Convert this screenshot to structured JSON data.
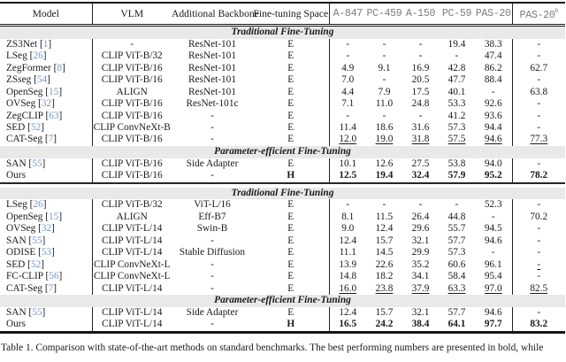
{
  "colors": {
    "citation_link": "#7498c9",
    "section_band_bg": "#e9e9e9",
    "benchmark_header_text": "#7c7c7c"
  },
  "table": {
    "header": {
      "model": "Model",
      "vlm": "VLM",
      "backbone": "Additional Backbone",
      "space": "Fine-tuning Space",
      "benchmarks": [
        "A-847",
        "PC-459",
        "A-150",
        "PC-59",
        "PAS-20"
      ],
      "benchmark_b": "PAS-20",
      "benchmark_b_sup": "b"
    },
    "sections": [
      {
        "label": "Traditional Fine-Tuning",
        "rows": [
          {
            "model": "ZS3Net",
            "ref": "1",
            "vlm": "-",
            "backbone": "ResNet-101",
            "space": "E",
            "values": [
              "-",
              "-",
              "-",
              "19.4",
              "38.3",
              "-"
            ]
          },
          {
            "model": "LSeg",
            "ref": "26",
            "vlm": "CLIP ViT-B/32",
            "backbone": "ResNet-101",
            "space": "E",
            "values": [
              "-",
              "-",
              "-",
              "-",
              "47.4",
              "-"
            ]
          },
          {
            "model": "ZegFormer",
            "ref": "8",
            "vlm": "CLIP ViT-B/16",
            "backbone": "ResNet-101",
            "space": "E",
            "values": [
              "4.9",
              "9.1",
              "16.9",
              "42.8",
              "86.2",
              "62.7"
            ]
          },
          {
            "model": "ZSseg",
            "ref": "54",
            "vlm": "CLIP ViT-B/16",
            "backbone": "ResNet-101",
            "space": "E",
            "values": [
              "7.0",
              "-",
              "20.5",
              "47.7",
              "88.4",
              "-"
            ]
          },
          {
            "model": "OpenSeg",
            "ref": "15",
            "vlm": "ALIGN",
            "backbone": "ResNet-101",
            "space": "E",
            "values": [
              "4.4",
              "7.9",
              "17.5",
              "40.1",
              "-",
              "63.8"
            ]
          },
          {
            "model": "OVSeg",
            "ref": "32",
            "vlm": "CLIP ViT-B/16",
            "backbone": "ResNet-101c",
            "space": "E",
            "values": [
              "7.1",
              "11.0",
              "24.8",
              "53.3",
              "92.6",
              "-"
            ]
          },
          {
            "model": "ZegCLIP",
            "ref": "63",
            "vlm": "CLIP ViT-B/16",
            "backbone": "-",
            "space": "E",
            "values": [
              "-",
              "-",
              "-",
              "41.2",
              "93.6",
              "-"
            ]
          },
          {
            "model": "SED",
            "ref": "52",
            "vlm": "CLIP ConvNeXt-B",
            "backbone": "-",
            "space": "E",
            "values": [
              "11.4",
              "18.6",
              "31.6",
              "57.3",
              "94.4",
              "-"
            ]
          },
          {
            "model": "CAT-Seg",
            "ref": "7",
            "vlm": "CLIP ViT-B/16",
            "backbone": "-",
            "space": "E",
            "values": [
              "12.0",
              "19.0",
              "31.8",
              "57.5",
              "94.6",
              "77.3"
            ],
            "underline": [
              0,
              1,
              2,
              3,
              4,
              5
            ]
          }
        ]
      },
      {
        "label": "Parameter-efficient Fine-Tuning",
        "rows": [
          {
            "model": "SAN",
            "ref": "55",
            "vlm": "CLIP ViT-B/16",
            "backbone": "Side Adapter",
            "space": "E",
            "values": [
              "10.1",
              "12.6",
              "27.5",
              "53.8",
              "94.0",
              "-"
            ]
          },
          {
            "model": "Ours",
            "ref": null,
            "vlm": "CLIP ViT-B/16",
            "backbone": "-",
            "space": "H",
            "bold": true,
            "values": [
              "12.5",
              "19.4",
              "32.4",
              "57.9",
              "95.2",
              "78.2"
            ]
          }
        ]
      },
      {
        "label": "Traditional Fine-Tuning",
        "separator_before": true,
        "rows": [
          {
            "model": "LSeg",
            "ref": "26",
            "vlm": "CLIP ViT-B/32",
            "backbone": "ViT-L/16",
            "space": "E",
            "values": [
              "-",
              "-",
              "-",
              "-",
              "52.3",
              "-"
            ]
          },
          {
            "model": "OpenSeg",
            "ref": "15",
            "vlm": "ALIGN",
            "backbone": "Eff-B7",
            "space": "E",
            "values": [
              "8.1",
              "11.5",
              "26.4",
              "44.8",
              "-",
              "70.2"
            ]
          },
          {
            "model": "OVSeg",
            "ref": "32",
            "vlm": "CLIP ViT-L/14",
            "backbone": "Swin-B",
            "space": "E",
            "values": [
              "9.0",
              "12.4",
              "29.6",
              "55.7",
              "94.5",
              "-"
            ]
          },
          {
            "model": "SAN",
            "ref": "55",
            "vlm": "CLIP ViT-L/14",
            "backbone": "-",
            "space": "E",
            "values": [
              "12.4",
              "15.7",
              "32.1",
              "57.7",
              "94.6",
              "-"
            ]
          },
          {
            "model": "ODISE",
            "ref": "53",
            "vlm": "CLIP ViT-L/14",
            "backbone": "Stable Diffusion",
            "space": "E",
            "values": [
              "11.1",
              "14.5",
              "29.9",
              "57.3",
              "-",
              "-"
            ]
          },
          {
            "model": "SED",
            "ref": "52",
            "vlm": "CLIP ConvNeXt-L",
            "backbone": "-",
            "space": "E",
            "values": [
              "13.9",
              "22.6",
              "35.2",
              "60.6",
              "96.1",
              "-"
            ],
            "underline": [
              5
            ]
          },
          {
            "model": "FC-CLIP",
            "ref": "56",
            "vlm": "CLIP ConvNeXt-L",
            "backbone": "-",
            "space": "E",
            "values": [
              "14.8",
              "18.2",
              "34.1",
              "58.4",
              "95.4",
              "-"
            ]
          },
          {
            "model": "CAT-Seg",
            "ref": "7",
            "vlm": "CLIP ViT-L/14",
            "backbone": "-",
            "space": "E",
            "values": [
              "16.0",
              "23.8",
              "37.9",
              "63.3",
              "97.0",
              "82.5"
            ],
            "underline": [
              0,
              1,
              2,
              3,
              4,
              5
            ]
          }
        ]
      },
      {
        "label": "Parameter-efficient Fine-Tuning",
        "rows": [
          {
            "model": "SAN",
            "ref": "55",
            "vlm": "CLIP ViT-L/14",
            "backbone": "Side Adapter",
            "space": "E",
            "values": [
              "12.4",
              "15.7",
              "32.1",
              "57.7",
              "94.6",
              "-"
            ]
          },
          {
            "model": "Ours",
            "ref": null,
            "vlm": "CLIP ViT-L/14",
            "backbone": "-",
            "space": "H",
            "bold": true,
            "values": [
              "16.5",
              "24.2",
              "38.4",
              "64.1",
              "97.7",
              "83.2"
            ]
          }
        ]
      }
    ]
  },
  "caption": "Table 1. Comparison with state-of-the-art methods on standard benchmarks. The best performing numbers are presented in bold, while"
}
